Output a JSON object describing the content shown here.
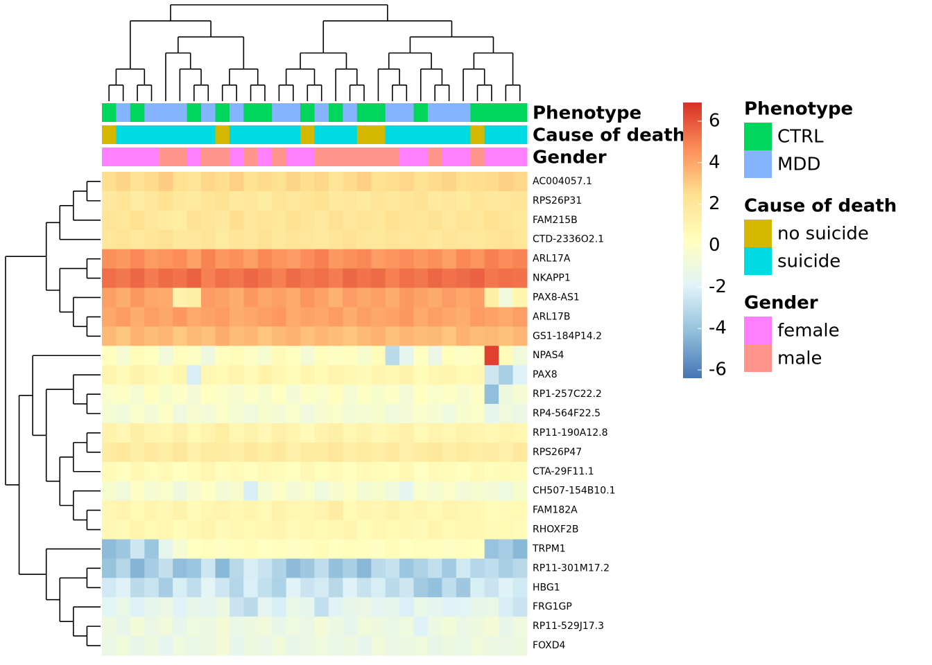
{
  "chart_data": {
    "type": "heatmap",
    "rows": [
      "AC004057.1",
      "RPS26P31",
      "FAM215B",
      "CTD-2336O2.1",
      "ARL17A",
      "NKAPP1",
      "PAX8-AS1",
      "ARL17B",
      "GS1-184P14.2",
      "NPAS4",
      "PAX8",
      "RP1-257C22.2",
      "RP4-564F22.5",
      "RP11-190A12.8",
      "RPS26P47",
      "CTA-29F11.1",
      "CH507-154B10.1",
      "FAM182A",
      "RHOXF2B",
      "TRPM1",
      "RP11-301M17.2",
      "HBG1",
      "FRG1GP",
      "RP11-529J17.3",
      "FOXD4"
    ],
    "values": [
      [
        2.5,
        2.8,
        2.3,
        2.6,
        3,
        2.4,
        2.2,
        2.7,
        2.5,
        2.9,
        2.4,
        2.6,
        2.3,
        2.8,
        2.5,
        2.7,
        2.2,
        2.6,
        2.9,
        2.4,
        2.5,
        2.7,
        2.3,
        2.6,
        2.8,
        2.4,
        2.5,
        2.6,
        2.9,
        2.7
      ],
      [
        1.8,
        2.2,
        1.6,
        2,
        2.4,
        1.9,
        1.7,
        2.1,
        2.3,
        1.8,
        2,
        1.6,
        2.2,
        1.9,
        2.1,
        2.4,
        1.8,
        2,
        1.7,
        2.2,
        1.9,
        2.1,
        2.3,
        1.8,
        2,
        1.7,
        2.2,
        1.9,
        2,
        2.1
      ],
      [
        2.2,
        1.9,
        2.4,
        2,
        1.7,
        1.5,
        2.3,
        2.1,
        1.8,
        2.5,
        2,
        2.2,
        1.9,
        2.4,
        2.1,
        1.8,
        2.3,
        2,
        2.2,
        1.9,
        2.4,
        2.1,
        2,
        2.3,
        1.8,
        2.2,
        2,
        2.4,
        2.1,
        1.9
      ],
      [
        2,
        2.2,
        1.8,
        2.1,
        2.3,
        1.9,
        2,
        2.2,
        1.7,
        2.1,
        2,
        2.3,
        1.9,
        2.2,
        2,
        1.8,
        2.1,
        2.3,
        2,
        1.9,
        2.2,
        2,
        2.1,
        1.8,
        2.2,
        2,
        1.9,
        2.1,
        2.3,
        2
      ],
      [
        4.6,
        4.4,
        4.8,
        4.3,
        4.5,
        4.7,
        4.1,
        4.9,
        4.4,
        4.6,
        4.2,
        4.8,
        4.5,
        4.3,
        4.7,
        5,
        4.4,
        4.6,
        4.8,
        4.3,
        4.5,
        4.7,
        4.4,
        4.6,
        4.2,
        4.8,
        4.5,
        5,
        4.7,
        4.9
      ],
      [
        5.4,
        5.2,
        5.6,
        5.1,
        5.5,
        5.3,
        5.7,
        5,
        5.4,
        5.2,
        5.6,
        5.3,
        5,
        5.5,
        5.2,
        5.4,
        5.1,
        5.6,
        5.3,
        5.5,
        5,
        5.4,
        5.2,
        5.6,
        5.3,
        5.5,
        5.7,
        5.2,
        5.4,
        5.3
      ],
      [
        4.2,
        3.8,
        4.4,
        4,
        3.9,
        1.2,
        1.5,
        4.3,
        4.1,
        3.8,
        4.4,
        4,
        4.2,
        3.9,
        4.5,
        4.1,
        3.7,
        4.3,
        4,
        4.2,
        3.8,
        4.4,
        4.1,
        3.9,
        4.3,
        4,
        4.2,
        1.4,
        -0.8,
        1
      ],
      [
        4,
        4.3,
        3.8,
        4.2,
        4,
        4.4,
        3.9,
        4.1,
        4.3,
        3.8,
        4,
        4.2,
        4.4,
        3.9,
        4.1,
        4,
        4.3,
        3.8,
        4.2,
        4,
        4.1,
        4.4,
        3.9,
        4.2,
        4,
        3.8,
        4.3,
        4.1,
        3.9,
        4.2
      ],
      [
        3.5,
        3.2,
        3.7,
        3.4,
        3.6,
        3.1,
        3.5,
        3.3,
        3.8,
        3.4,
        3.6,
        3.2,
        3.5,
        3.7,
        3.3,
        3.6,
        3.4,
        3.2,
        3.5,
        3.7,
        3.3,
        3.6,
        3.4,
        3.5,
        3.2,
        3.7,
        3.4,
        3.5,
        3.3,
        3.6
      ],
      [
        0.3,
        -0.5,
        0.5,
        0.2,
        -0.8,
        0.4,
        0.1,
        -1,
        0.3,
        0.5,
        0,
        -0.4,
        0.6,
        0.2,
        -0.6,
        0.4,
        0.1,
        0.3,
        -0.3,
        0.5,
        -3,
        -1.5,
        0.2,
        -1.2,
        0.4,
        0,
        0.3,
        6.5,
        0.5,
        -0.8
      ],
      [
        1,
        0.6,
        1.2,
        0.8,
        0.5,
        1,
        -2.2,
        0.9,
        0.7,
        1.1,
        0.6,
        1.2,
        0.8,
        0.5,
        1,
        0.7,
        1.1,
        0.9,
        0.6,
        1,
        0.8,
        1.2,
        0.5,
        0.9,
        1,
        0.7,
        0.8,
        -2.5,
        -3.5,
        -2
      ],
      [
        -0.2,
        0,
        -0.5,
        0.3,
        -0.3,
        0,
        -0.6,
        0.2,
        -0.1,
        -0.4,
        0.1,
        -0.3,
        0.2,
        -0.6,
        0,
        -0.2,
        0.3,
        -0.5,
        0.1,
        -0.3,
        0,
        -0.6,
        0.2,
        -0.2,
        0.1,
        -0.4,
        0,
        -4.2,
        -1,
        -0.5
      ],
      [
        -0.5,
        -0.8,
        -0.2,
        -0.6,
        0,
        -0.9,
        -0.4,
        -0.7,
        -0.1,
        -0.5,
        -0.8,
        -0.3,
        -0.6,
        -0.2,
        -0.9,
        -0.4,
        -0.1,
        -0.7,
        -0.5,
        -0.3,
        -0.8,
        -0.6,
        -0.2,
        -0.5,
        -0.9,
        -0.4,
        -0.1,
        -1.5,
        -0.8,
        -1.2
      ],
      [
        1.2,
        0.8,
        1.4,
        1,
        0.9,
        1.3,
        0.7,
        1.1,
        1.5,
        0.9,
        1.2,
        0.8,
        1.3,
        1,
        0.6,
        1.1,
        1.4,
        0.9,
        1.2,
        0.8,
        1,
        1.3,
        0.7,
        1.1,
        0.9,
        1.2,
        1,
        0.8,
        1.1,
        0.9
      ],
      [
        1.6,
        1.9,
        1.4,
        1.8,
        1.5,
        2,
        1.3,
        1.7,
        1.6,
        1.4,
        1.9,
        1.5,
        1.8,
        1.3,
        1.7,
        1.6,
        2,
        1.4,
        1.7,
        1.5,
        1.8,
        1.3,
        1.6,
        1.9,
        1.4,
        1.7,
        1.5,
        1.6,
        1.3,
        1.8
      ],
      [
        0.6,
        0.3,
        0.8,
        0.4,
        0.7,
        0.2,
        0.5,
        0.9,
        0.4,
        0.6,
        0.3,
        0.7,
        0.5,
        0.2,
        0.8,
        0.4,
        0.6,
        0.3,
        0.7,
        0.5,
        0.4,
        0.8,
        0.2,
        0.6,
        0.5,
        0.3,
        0.7,
        0.4,
        0.6,
        0.5
      ],
      [
        -0.3,
        -0.8,
        0,
        -0.5,
        -0.2,
        -1,
        -0.4,
        0.1,
        -0.7,
        -0.3,
        -2.2,
        -0.5,
        0,
        -0.6,
        -0.2,
        -0.9,
        -0.4,
        0.1,
        -0.6,
        -0.3,
        -0.8,
        -1.6,
        -0.2,
        -0.5,
        -0.1,
        -0.7,
        -0.4,
        -0.6,
        -0.9,
        -0.3
      ],
      [
        0.9,
        1.1,
        0.7,
        1,
        0.8,
        1.2,
        0.6,
        0.9,
        1.1,
        0.8,
        1,
        0.7,
        1.2,
        0.9,
        0.8,
        1.1,
        1.6,
        0.7,
        1,
        0.9,
        1.2,
        0.8,
        1,
        0.7,
        1.1,
        0.9,
        0.8,
        0.5,
        0.6,
        0.7
      ],
      [
        0.8,
        0.6,
        1,
        0.7,
        0.9,
        0.5,
        0.8,
        1.1,
        0.6,
        0.9,
        0.7,
        0.8,
        1,
        0.6,
        0.9,
        0.7,
        0.8,
        1,
        0.5,
        0.9,
        0.7,
        0.8,
        0.6,
        1,
        0.7,
        0.9,
        0.8,
        0.6,
        0.7,
        0.5
      ],
      [
        -4.3,
        -3.8,
        -2.5,
        -3.9,
        -1.5,
        -0.5,
        0.2,
        0.4,
        0.1,
        0.3,
        0.5,
        0.2,
        0.4,
        0.1,
        0.3,
        0.5,
        0.2,
        0.4,
        0.3,
        0.1,
        0.5,
        0.2,
        0.4,
        0.3,
        0.1,
        0.4,
        0.2,
        -4,
        -3.6,
        -4.4
      ],
      [
        -4,
        -3.2,
        -4.5,
        -3.6,
        -2.8,
        -4.2,
        -3.9,
        -2.5,
        -4.4,
        -3.1,
        -2.2,
        -2.6,
        -3.3,
        -4.3,
        -3.8,
        -2.9,
        -4.1,
        -3.5,
        -4.4,
        -3,
        -2.7,
        -3.9,
        -3.4,
        -2.8,
        -3.7,
        -2.4,
        -3.2,
        -2.9,
        -3.5,
        -3.1
      ],
      [
        -2.4,
        -2,
        -3,
        -2.6,
        -3.6,
        -2.2,
        -2.9,
        -1.8,
        -2.5,
        -3.2,
        -2.1,
        -2.8,
        -3.4,
        -1.9,
        -2.6,
        -2.3,
        -3.1,
        -2,
        -2.7,
        -2.2,
        -3,
        -2.5,
        -3.7,
        -4.1,
        -2.9,
        -3.8,
        -2.2,
        -2.6,
        -2,
        -2.4
      ],
      [
        -1.8,
        -1.3,
        -2,
        -1.5,
        -1.2,
        -1.9,
        -1.4,
        -1.6,
        -1.1,
        -2.6,
        -3,
        -1.7,
        -2.2,
        -1.3,
        -1.5,
        -2.8,
        -1.9,
        -1.4,
        -1.2,
        -1.7,
        -1.5,
        -2.1,
        -1.3,
        -1.6,
        -1.9,
        -1.8,
        -1.4,
        -1.3,
        -2.2,
        -2.6
      ],
      [
        -1,
        -1.4,
        -0.7,
        -1.2,
        -0.8,
        -1.5,
        -0.9,
        -1.1,
        -0.6,
        -1.3,
        -1,
        -0.8,
        -1.4,
        -0.9,
        -1.2,
        -0.7,
        -1.1,
        -1.5,
        -0.8,
        -1,
        -1.3,
        -0.9,
        -2,
        -1.1,
        -0.7,
        -1.2,
        -1,
        -0.6,
        -1.4,
        -0.9
      ],
      [
        -1.2,
        -0.8,
        -1.4,
        -1,
        -1.6,
        -0.9,
        -1.3,
        -1.1,
        -0.7,
        -1.5,
        -1,
        -1.2,
        -0.8,
        -1.4,
        -1.1,
        -0.9,
        -1.3,
        -1,
        -1.5,
        -0.8,
        -1.2,
        -1.1,
        -0.9,
        -1.4,
        -1,
        -1.3,
        -0.8,
        -1.1,
        -1.2,
        -1
      ]
    ],
    "zlim": [
      -6.4,
      6.9
    ],
    "zticks": [
      -6,
      -4,
      -2,
      0,
      2,
      4,
      6
    ],
    "colors": [
      "#4575B4",
      "#91BFDB",
      "#E0F3F8",
      "#FFFFBF",
      "#FEE090",
      "#FC8D59",
      "#D73027"
    ],
    "annotations": [
      {
        "name": "Phenotype",
        "levels": [
          {
            "label": "CTRL",
            "color": "#00D65C"
          },
          {
            "label": "MDD",
            "color": "#85B4FF"
          }
        ],
        "values": [
          "CTRL",
          "MDD",
          "CTRL",
          "MDD",
          "MDD",
          "MDD",
          "CTRL",
          "MDD",
          "CTRL",
          "MDD",
          "CTRL",
          "CTRL",
          "MDD",
          "MDD",
          "CTRL",
          "MDD",
          "CTRL",
          "MDD",
          "CTRL",
          "CTRL",
          "MDD",
          "MDD",
          "CTRL",
          "MDD",
          "MDD",
          "MDD",
          "CTRL",
          "CTRL",
          "CTRL",
          "CTRL"
        ]
      },
      {
        "name": "Cause of death",
        "levels": [
          {
            "label": "no suicide",
            "color": "#D4B800"
          },
          {
            "label": "suicide",
            "color": "#00DBE3"
          }
        ],
        "values": [
          "no suicide",
          "suicide",
          "suicide",
          "suicide",
          "suicide",
          "suicide",
          "suicide",
          "suicide",
          "no suicide",
          "suicide",
          "suicide",
          "suicide",
          "suicide",
          "suicide",
          "no suicide",
          "suicide",
          "suicide",
          "suicide",
          "no suicide",
          "no suicide",
          "suicide",
          "suicide",
          "suicide",
          "suicide",
          "suicide",
          "suicide",
          "no suicide",
          "suicide",
          "suicide",
          "suicide"
        ]
      },
      {
        "name": "Gender",
        "levels": [
          {
            "label": "female",
            "color": "#FF80FF"
          },
          {
            "label": "male",
            "color": "#FF948A"
          }
        ],
        "values": [
          "female",
          "female",
          "female",
          "female",
          "male",
          "male",
          "female",
          "male",
          "male",
          "female",
          "male",
          "female",
          "male",
          "female",
          "female",
          "male",
          "male",
          "male",
          "male",
          "male",
          "male",
          "female",
          "female",
          "male",
          "female",
          "female",
          "male",
          "female",
          "female",
          "female"
        ]
      }
    ]
  }
}
